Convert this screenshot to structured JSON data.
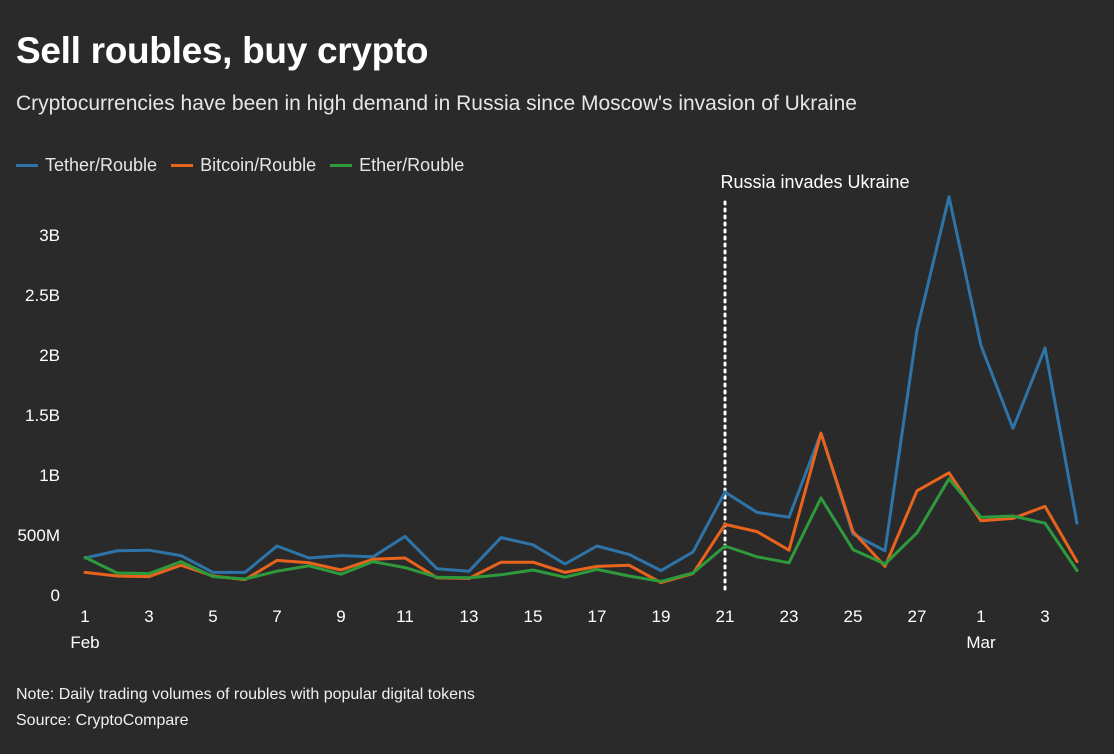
{
  "header": {
    "title": "Sell roubles, buy crypto",
    "subtitle": "Cryptocurrencies have been in high demand in Russia since Moscow's invasion of Ukraine"
  },
  "footer": {
    "note": "Note: Daily trading volumes of roubles with popular digital tokens",
    "source": "Source: CryptoCompare"
  },
  "colors": {
    "background": "#2a2a2a",
    "tether": "#2f74a8",
    "bitcoin": "#e8641d",
    "ether": "#2e9a3c",
    "annotation_line": "#ffffff"
  },
  "chart_data": {
    "type": "line",
    "x": [
      "Feb 1",
      "Feb 2",
      "Feb 3",
      "Feb 4",
      "Feb 5",
      "Feb 6",
      "Feb 7",
      "Feb 8",
      "Feb 9",
      "Feb 10",
      "Feb 11",
      "Feb 12",
      "Feb 13",
      "Feb 14",
      "Feb 15",
      "Feb 16",
      "Feb 17",
      "Feb 18",
      "Feb 19",
      "Feb 20",
      "Feb 21",
      "Feb 22",
      "Feb 23",
      "Feb 24",
      "Feb 25",
      "Feb 26",
      "Feb 27",
      "Feb 28",
      "Mar 1",
      "Mar 2",
      "Mar 3",
      "Mar 4"
    ],
    "x_tick_labels": [
      {
        "index": 0,
        "label": "1"
      },
      {
        "index": 2,
        "label": "3"
      },
      {
        "index": 4,
        "label": "5"
      },
      {
        "index": 6,
        "label": "7"
      },
      {
        "index": 8,
        "label": "9"
      },
      {
        "index": 10,
        "label": "11"
      },
      {
        "index": 12,
        "label": "13"
      },
      {
        "index": 14,
        "label": "15"
      },
      {
        "index": 16,
        "label": "17"
      },
      {
        "index": 18,
        "label": "19"
      },
      {
        "index": 20,
        "label": "21"
      },
      {
        "index": 22,
        "label": "23"
      },
      {
        "index": 24,
        "label": "25"
      },
      {
        "index": 26,
        "label": "27"
      },
      {
        "index": 28,
        "label": "1"
      },
      {
        "index": 30,
        "label": "3"
      }
    ],
    "month_labels": [
      {
        "index": 0,
        "label": "Feb"
      },
      {
        "index": 28,
        "label": "Mar"
      }
    ],
    "y_ticks": [
      {
        "value": 0,
        "label": "0"
      },
      {
        "value": 500000000,
        "label": "500M"
      },
      {
        "value": 1000000000,
        "label": "1B"
      },
      {
        "value": 1500000000,
        "label": "1.5B"
      },
      {
        "value": 2000000000,
        "label": "2B"
      },
      {
        "value": 2500000000,
        "label": "2.5B"
      },
      {
        "value": 3000000000,
        "label": "3B"
      }
    ],
    "ylim": [
      0,
      3300000000
    ],
    "grid": false,
    "legend_position": "top-left",
    "annotation": {
      "index": 20,
      "label": "Russia invades Ukraine"
    },
    "series": [
      {
        "name": "Tether/Rouble",
        "color": "#2f74a8",
        "values": [
          300000000,
          360000000,
          365000000,
          320000000,
          180000000,
          180000000,
          400000000,
          300000000,
          320000000,
          310000000,
          480000000,
          210000000,
          190000000,
          470000000,
          410000000,
          250000000,
          400000000,
          330000000,
          195000000,
          350000000,
          850000000,
          680000000,
          640000000,
          1340000000,
          500000000,
          360000000,
          2200000000,
          3310000000,
          2070000000,
          1380000000,
          2050000000,
          590000000
        ]
      },
      {
        "name": "Bitcoin/Rouble",
        "color": "#e8641d",
        "values": [
          180000000,
          150000000,
          145000000,
          240000000,
          150000000,
          120000000,
          280000000,
          260000000,
          200000000,
          290000000,
          300000000,
          135000000,
          130000000,
          265000000,
          265000000,
          180000000,
          230000000,
          240000000,
          95000000,
          170000000,
          580000000,
          520000000,
          365000000,
          1340000000,
          520000000,
          230000000,
          860000000,
          1010000000,
          610000000,
          630000000,
          730000000,
          270000000
        ]
      },
      {
        "name": "Ether/Rouble",
        "color": "#2e9a3c",
        "values": [
          305000000,
          175000000,
          170000000,
          270000000,
          145000000,
          125000000,
          190000000,
          235000000,
          165000000,
          270000000,
          220000000,
          140000000,
          135000000,
          160000000,
          200000000,
          140000000,
          205000000,
          150000000,
          105000000,
          175000000,
          400000000,
          310000000,
          260000000,
          800000000,
          370000000,
          250000000,
          510000000,
          960000000,
          640000000,
          650000000,
          590000000,
          195000000
        ]
      }
    ]
  }
}
